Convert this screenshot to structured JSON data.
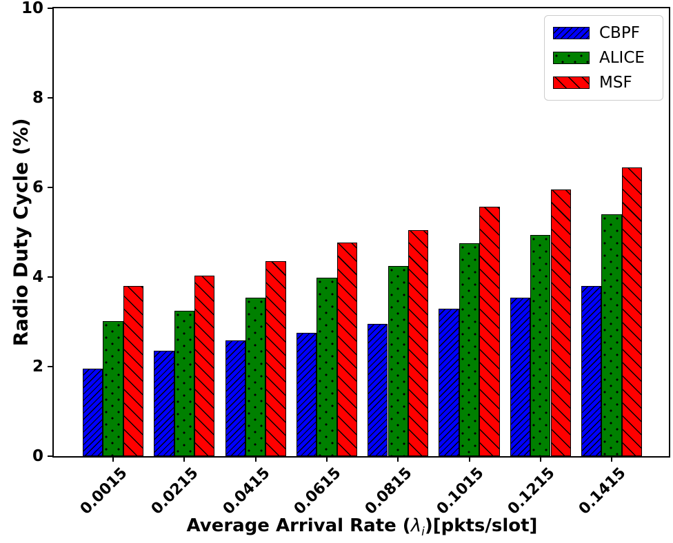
{
  "chart_data": {
    "type": "bar",
    "title": "",
    "xlabel": "Average Arrival Rate (λ_i)[pkts/slot]",
    "ylabel": "Radio Duty Cycle (%)",
    "categories": [
      "0.0015",
      "0.0215",
      "0.0415",
      "0.0615",
      "0.0815",
      "0.1015",
      "0.1215",
      "0.1415"
    ],
    "series": [
      {
        "name": "CBPF",
        "color": "#0000ff",
        "hatch": "forward-diagonal",
        "values": [
          1.95,
          2.35,
          2.58,
          2.76,
          2.96,
          3.3,
          3.54,
          3.8
        ]
      },
      {
        "name": "ALICE",
        "color": "#008000",
        "hatch": "dots",
        "values": [
          3.02,
          3.25,
          3.54,
          3.98,
          4.25,
          4.76,
          4.94,
          5.4
        ]
      },
      {
        "name": "MSF",
        "color": "#ff0000",
        "hatch": "back-diagonal",
        "values": [
          3.8,
          4.03,
          4.35,
          4.77,
          5.04,
          5.57,
          5.96,
          6.44
        ]
      }
    ],
    "ylim": [
      0,
      10
    ],
    "yticks": [
      0,
      2,
      4,
      6,
      8,
      10
    ],
    "legend_position": "upper right",
    "grid": false,
    "bar_edge_color": "#000000",
    "legend_border_color": "#cccccc"
  },
  "xlabel_parts": {
    "prefix": "Average Arrival Rate (",
    "symbol": "λ",
    "subscript": "i",
    "suffix": ")[pkts/slot]"
  }
}
